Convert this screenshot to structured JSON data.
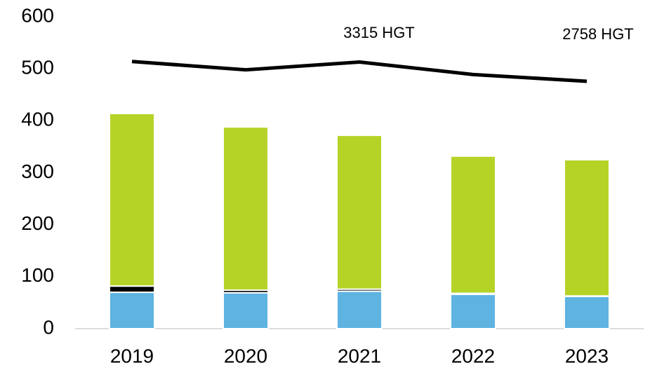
{
  "chart_data": {
    "type": "bar",
    "categories": [
      "2019",
      "2020",
      "2021",
      "2022",
      "2023"
    ],
    "series": [
      {
        "color": "#5eb3e0",
        "values": [
          70,
          69,
          72,
          66,
          62
        ]
      },
      {
        "color": "#000000",
        "values": [
          12,
          5,
          4,
          2,
          1
        ]
      },
      {
        "color": "#b5d327",
        "values": [
          332,
          314,
          296,
          264,
          262
        ]
      },
      {
        "type": "line",
        "color": "#000000",
        "values": [
          514,
          498,
          513,
          489,
          476
        ]
      }
    ],
    "stacked": true,
    "annotations": [
      "3315 HGT",
      "2758 HGT"
    ],
    "ylim": [
      0,
      600
    ],
    "yticks": [
      0,
      100,
      200,
      300,
      400,
      500,
      600
    ],
    "grid": false
  }
}
